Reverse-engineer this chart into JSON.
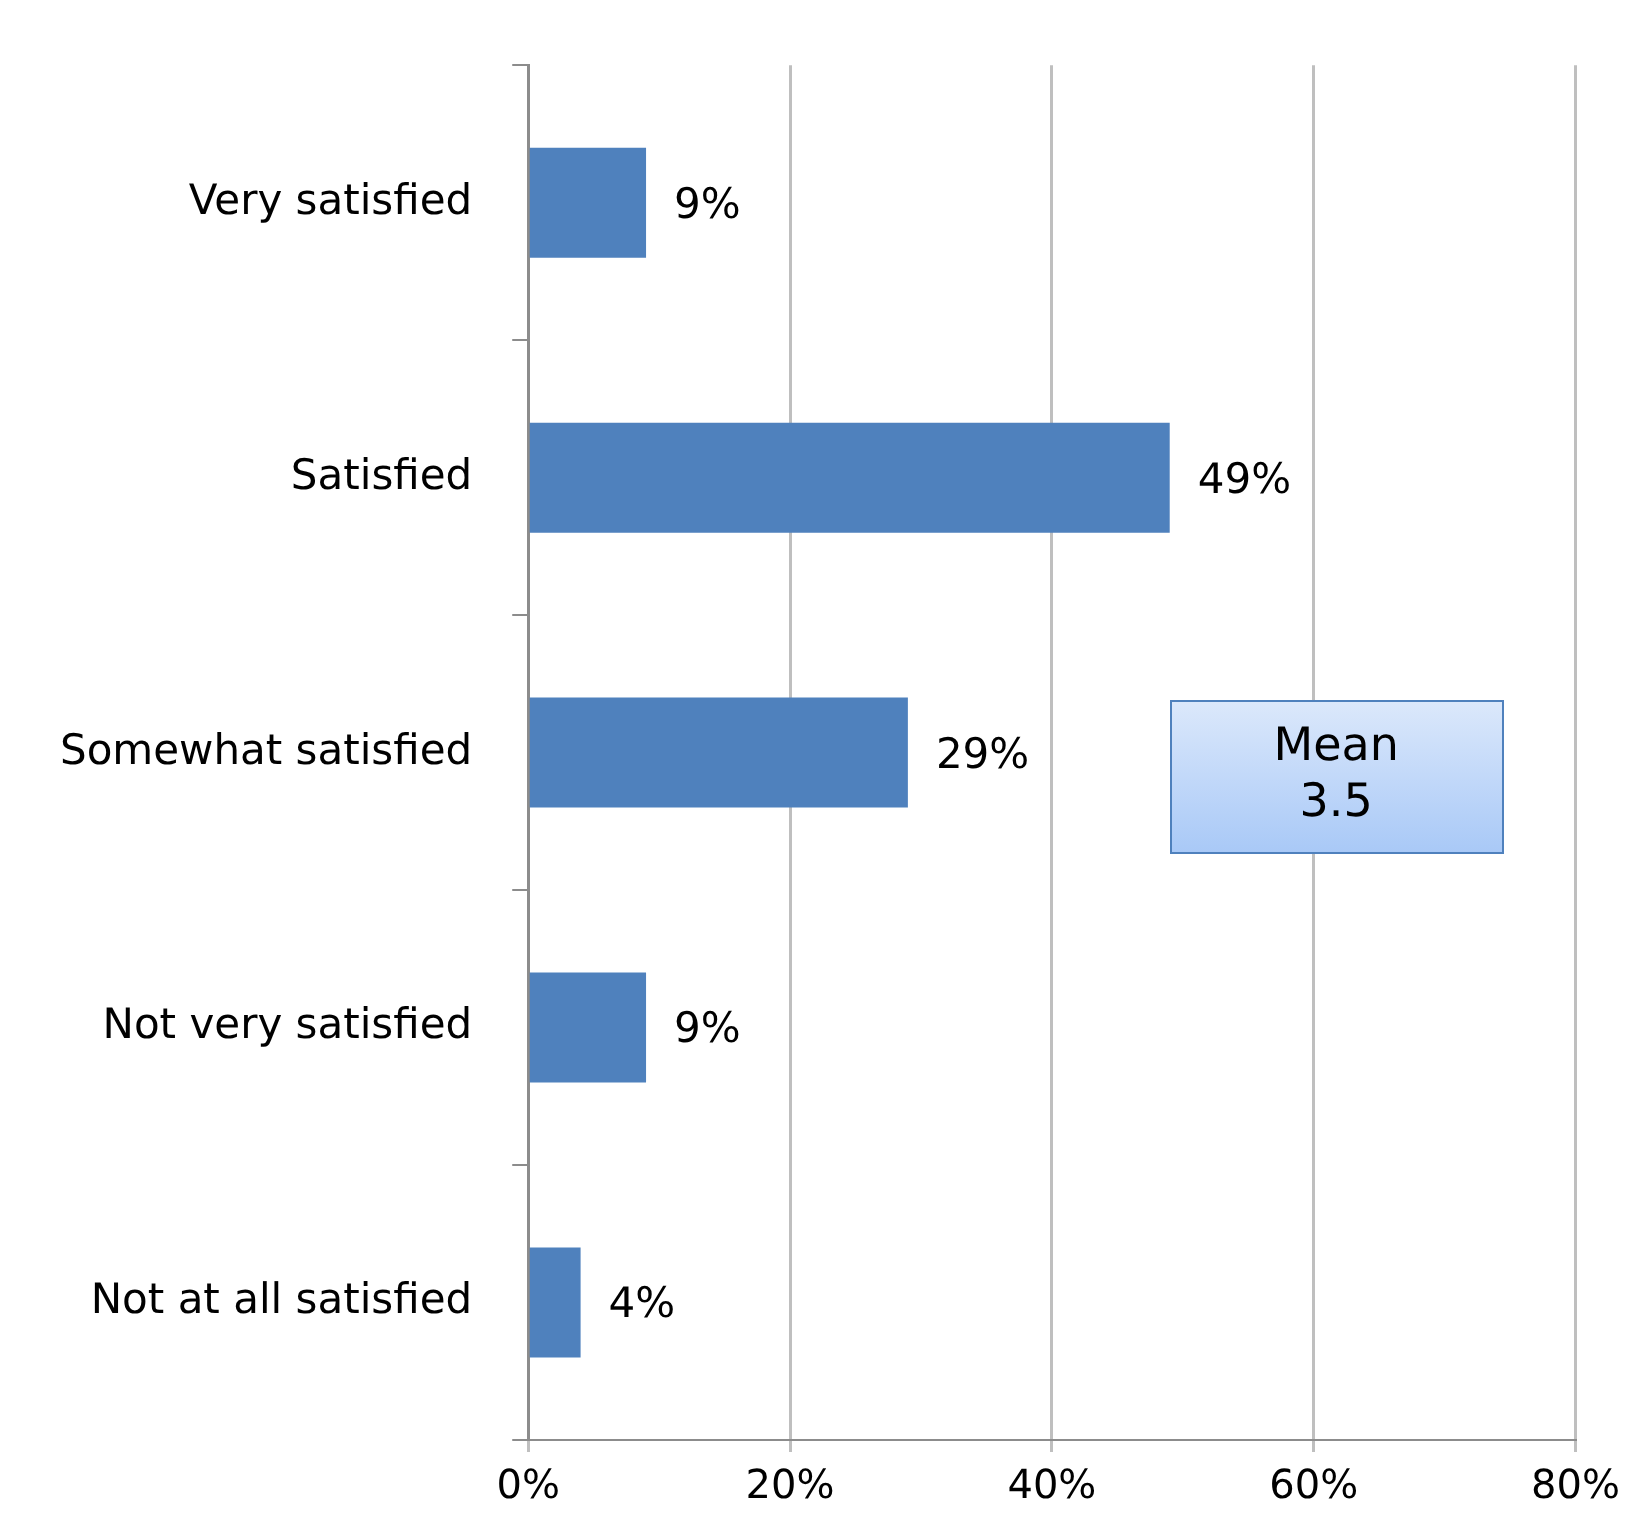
{
  "chart_data": {
    "type": "bar",
    "orientation": "horizontal",
    "categories": [
      "Very satisfied",
      "Satisfied",
      "Somewhat satisfied",
      "Not very satisfied",
      "Not at all satisfied"
    ],
    "values": [
      9,
      49,
      29,
      9,
      4
    ],
    "color": "#4f81bd",
    "xlim": [
      0,
      80
    ],
    "xticks": [
      {
        "value": 0,
        "label": "0%"
      },
      {
        "value": 20,
        "label": "20%"
      },
      {
        "value": 40,
        "label": "40%"
      },
      {
        "value": 60,
        "label": "60%"
      },
      {
        "value": 80,
        "label": "80%"
      }
    ],
    "value_labels": [
      "9%",
      "49%",
      "29%",
      "9%",
      "4%"
    ],
    "annotations": [
      "Mean\n3.5"
    ],
    "grid": "x",
    "legend": false
  }
}
